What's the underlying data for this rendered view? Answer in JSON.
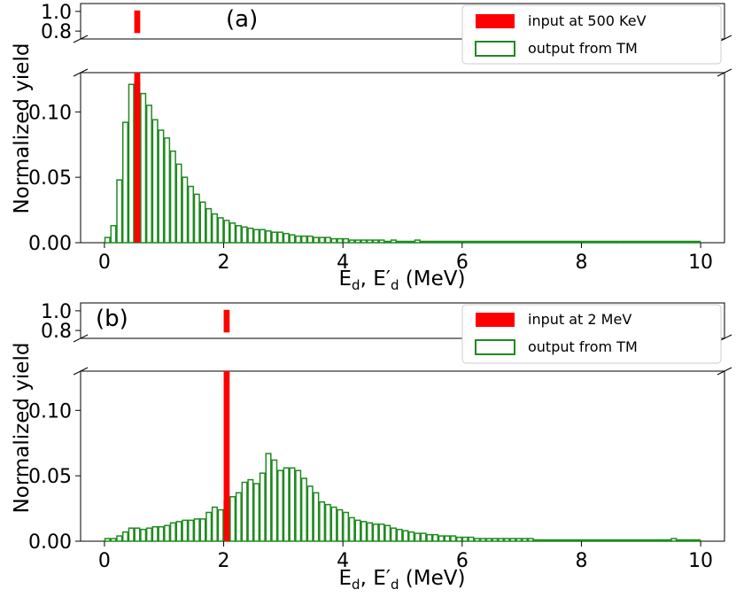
{
  "colors": {
    "input": "#ff0000",
    "output": "#1f8a1f",
    "axis": "#000000"
  },
  "chart_data": [
    {
      "type": "bar",
      "panel_label": "(a)",
      "xlabel": "E_d, E'_d (MeV)",
      "xlabel_main": "E",
      "xlabel_sub1": "d",
      "xlabel_mid": ", E′",
      "xlabel_sub2": "d",
      "xlabel_end": " (MeV)",
      "ylabel": "Normalized yield",
      "xlim": [
        -0.4,
        10.4
      ],
      "xticks": [
        "0",
        "2",
        "4",
        "6",
        "8",
        "10"
      ],
      "ylim_lower": [
        0,
        0.13
      ],
      "yticks_lower": [
        "0.00",
        "0.05",
        "0.10"
      ],
      "ylim_upper": [
        0.72,
        1.08
      ],
      "yticks_upper": [
        "1.0",
        "0.8"
      ],
      "broken_axis": true,
      "bin_width": 0.1,
      "bin_start": 0.0,
      "input": {
        "name": "input at 500 KeV",
        "x": 0.55,
        "value": 1.0
      },
      "output_name": "output from TM",
      "output_values": [
        0.004,
        0.013,
        0.048,
        0.092,
        0.121,
        0.123,
        0.114,
        0.105,
        0.094,
        0.086,
        0.08,
        0.07,
        0.06,
        0.05,
        0.043,
        0.037,
        0.031,
        0.026,
        0.022,
        0.019,
        0.017,
        0.015,
        0.013,
        0.012,
        0.011,
        0.01,
        0.01,
        0.009,
        0.008,
        0.008,
        0.007,
        0.006,
        0.005,
        0.005,
        0.005,
        0.004,
        0.004,
        0.004,
        0.003,
        0.003,
        0.003,
        0.002,
        0.002,
        0.002,
        0.002,
        0.002,
        0.002,
        0.001,
        0.002,
        0.001,
        0.001,
        0.001,
        0.002,
        0.001,
        0.001,
        0.001,
        0.001,
        0.001,
        0.001,
        0.001,
        0.001,
        0.001,
        0.001,
        0.001,
        0.001,
        0.001,
        0.001,
        0.001,
        0.001,
        0.001,
        0.001,
        0.001,
        0.001,
        0.001,
        0.001,
        0.001,
        0.001,
        0.001,
        0.001,
        0.001,
        0.001,
        0.001,
        0.001,
        0.001,
        0.001,
        0.001,
        0.001,
        0.001,
        0.001,
        0.001,
        0.001,
        0.001,
        0.001,
        0.001,
        0.001,
        0.001,
        0.001,
        0.001,
        0.001,
        0.001
      ],
      "legend_position": "upper-right"
    },
    {
      "type": "bar",
      "panel_label": "(b)",
      "xlabel": "E_d, E'_d (MeV)",
      "xlabel_main": "E",
      "xlabel_sub1": "d",
      "xlabel_mid": ", E′",
      "xlabel_sub2": "d",
      "xlabel_end": " (MeV)",
      "ylabel": "Normalized yield",
      "xlim": [
        -0.4,
        10.4
      ],
      "xticks": [
        "0",
        "2",
        "4",
        "6",
        "8",
        "10"
      ],
      "ylim_lower": [
        0,
        0.13
      ],
      "yticks_lower": [
        "0.00",
        "0.05",
        "0.10"
      ],
      "ylim_upper": [
        0.72,
        1.08
      ],
      "yticks_upper": [
        "1.0",
        "0.8"
      ],
      "broken_axis": true,
      "bin_width": 0.1,
      "bin_start": 0.0,
      "input": {
        "name": "input at 2 MeV",
        "x": 2.05,
        "value": 1.0
      },
      "output_name": "output from TM",
      "output_values": [
        0.002,
        0.002,
        0.004,
        0.007,
        0.01,
        0.01,
        0.009,
        0.01,
        0.011,
        0.011,
        0.012,
        0.014,
        0.015,
        0.016,
        0.016,
        0.017,
        0.017,
        0.022,
        0.026,
        0.024,
        0.031,
        0.034,
        0.037,
        0.045,
        0.047,
        0.044,
        0.052,
        0.067,
        0.062,
        0.054,
        0.056,
        0.056,
        0.054,
        0.048,
        0.042,
        0.037,
        0.03,
        0.028,
        0.026,
        0.024,
        0.022,
        0.018,
        0.016,
        0.015,
        0.014,
        0.013,
        0.013,
        0.012,
        0.01,
        0.009,
        0.008,
        0.007,
        0.006,
        0.006,
        0.005,
        0.005,
        0.004,
        0.004,
        0.004,
        0.003,
        0.003,
        0.003,
        0.002,
        0.002,
        0.002,
        0.002,
        0.002,
        0.002,
        0.002,
        0.002,
        0.002,
        0.002,
        0.001,
        0.001,
        0.001,
        0.001,
        0.001,
        0.001,
        0.001,
        0.001,
        0.001,
        0.001,
        0.001,
        0.001,
        0.001,
        0.001,
        0.001,
        0.001,
        0.001,
        0.001,
        0.001,
        0.001,
        0.001,
        0.001,
        0.001,
        0.002,
        0.001,
        0.001,
        0.001,
        0.001
      ],
      "legend_position": "upper-right"
    }
  ]
}
